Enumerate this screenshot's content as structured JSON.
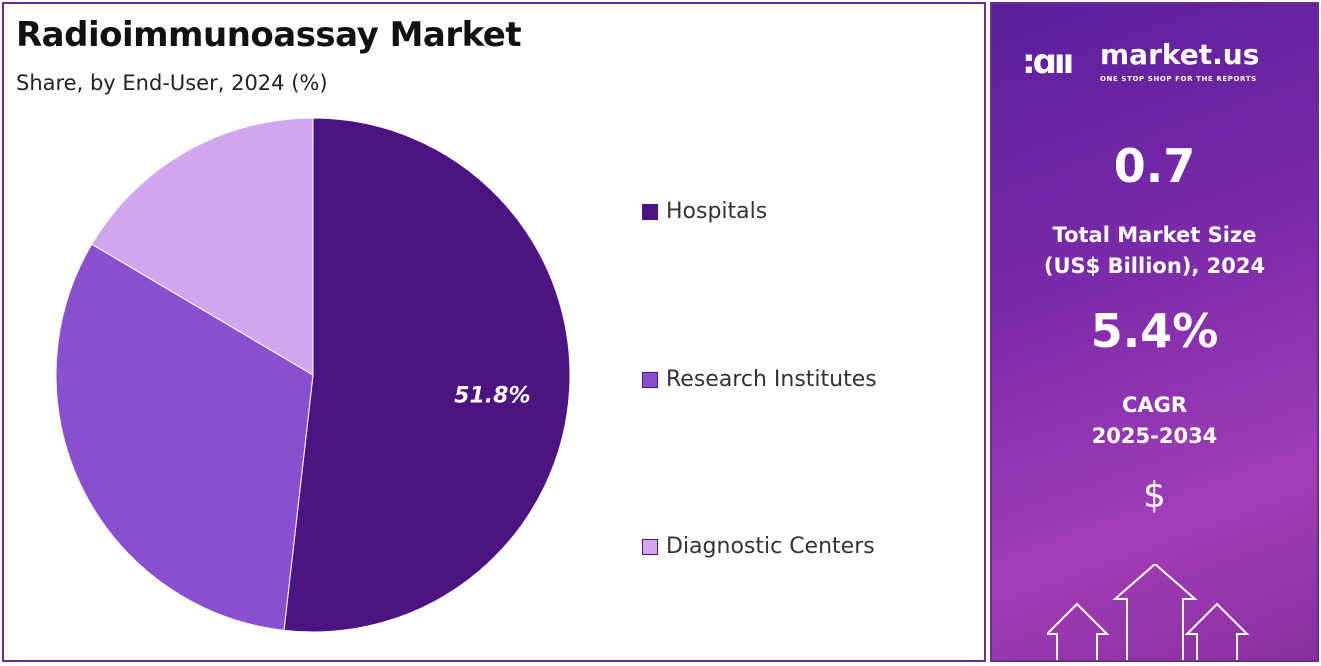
{
  "chart_data": {
    "type": "pie",
    "title": "Radioimmunoassay Market",
    "subtitle": "Share, by End-User, 2024 (%)",
    "categories": [
      "Hospitals",
      "Research Institutes",
      "Diagnostic Centers"
    ],
    "values": [
      51.8,
      31.7,
      16.5
    ],
    "colors": [
      "#4b1480",
      "#8a4fcf",
      "#d0a6ee"
    ],
    "data_labels": [
      "51.8%",
      "",
      ""
    ],
    "legend_position": "right"
  },
  "sidebar": {
    "brand": "market.us",
    "tagline": "ONE STOP SHOP FOR THE REPORTS",
    "market_size": "0.7",
    "market_size_label_1": "Total Market Size",
    "market_size_label_2": "(US$ Billion), 2024",
    "cagr": "5.4%",
    "cagr_label_1": "CAGR",
    "cagr_label_2": "2025-2034",
    "dollar_symbol": "$"
  }
}
